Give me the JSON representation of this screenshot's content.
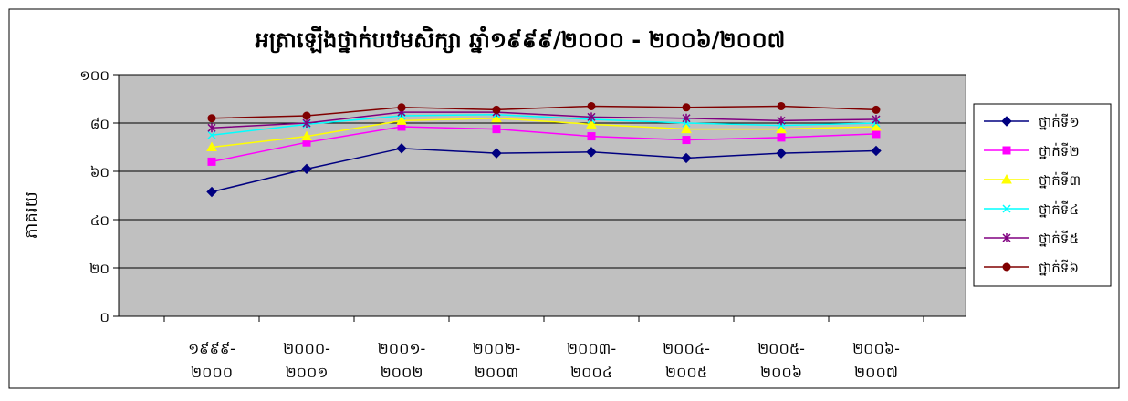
{
  "chart_data": {
    "type": "line",
    "title": "អត្រាឡើងថ្នាក់បឋមសិក្សា ឆ្នាំ១៩៩៩/២០០០ - ២០០៦/២០០៧",
    "xlabel": "",
    "ylabel": "ភាគរយ",
    "ylim": [
      0,
      100
    ],
    "yticks": [
      "០",
      "២០",
      "៤០",
      "៦០",
      "៨០",
      "១០០"
    ],
    "ytick_values": [
      0,
      20,
      40,
      60,
      80,
      100
    ],
    "grid": true,
    "plot_background": "#c0c0c0",
    "legend_position": "right",
    "categories": [
      [
        "១៩៩៩-",
        "២០០០"
      ],
      [
        "២០០០-",
        "២០០១"
      ],
      [
        "២០០១-",
        "២០០២"
      ],
      [
        "២០០២-",
        "២០០៣"
      ],
      [
        "២០០៣-",
        "២០០៤"
      ],
      [
        "២០០៤-",
        "២០០៥"
      ],
      [
        "២០០៥-",
        "២០០៦"
      ],
      [
        "២០០៦-",
        "២០០៧"
      ]
    ],
    "series": [
      {
        "name": "ថ្នាក់ទី១",
        "color": "#000080",
        "marker": "diamond",
        "values": [
          51.5,
          61.0,
          69.5,
          67.5,
          68.0,
          65.5,
          67.5,
          68.5
        ]
      },
      {
        "name": "ថ្នាក់ទី២",
        "color": "#ff00ff",
        "marker": "square",
        "values": [
          64.0,
          72.0,
          78.5,
          77.5,
          74.5,
          73.0,
          74.0,
          75.5
        ]
      },
      {
        "name": "ថ្នាក់ទី៣",
        "color": "#ffff00",
        "marker": "triangle",
        "values": [
          70.0,
          74.5,
          81.0,
          82.0,
          79.5,
          77.5,
          77.5,
          78.5
        ]
      },
      {
        "name": "ថ្នាក់ទី៤",
        "color": "#00ffff",
        "marker": "x",
        "values": [
          75.0,
          79.5,
          83.0,
          83.5,
          81.5,
          80.0,
          79.0,
          80.0
        ]
      },
      {
        "name": "ថ្នាក់ទី៥",
        "color": "#800080",
        "marker": "star",
        "values": [
          78.0,
          80.0,
          84.5,
          84.5,
          82.5,
          82.0,
          81.0,
          81.5
        ]
      },
      {
        "name": "ថ្នាក់ទី៦",
        "color": "#800000",
        "marker": "circle",
        "values": [
          82.0,
          83.0,
          86.5,
          85.5,
          87.0,
          86.5,
          87.0,
          85.5
        ]
      }
    ]
  }
}
